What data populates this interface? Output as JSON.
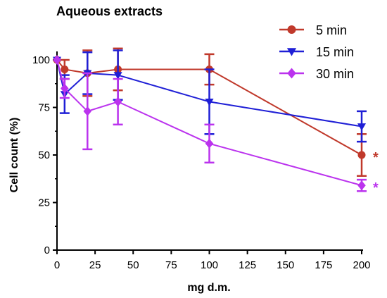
{
  "chart_data": {
    "type": "line",
    "title": "Aqueous extracts",
    "xlabel": "mg d.m.",
    "ylabel": "Cell count (%)",
    "xlim": [
      0,
      200
    ],
    "ylim": [
      0,
      100
    ],
    "x_ticks": [
      0,
      25,
      50,
      75,
      100,
      125,
      150,
      175,
      200
    ],
    "x_tick_labels": [
      "0",
      "25",
      "50",
      "75",
      "100",
      "125",
      "150",
      "175",
      "200"
    ],
    "y_ticks": [
      0,
      25,
      50,
      75,
      100
    ],
    "y_tick_labels": [
      "0",
      "25",
      "50",
      "75",
      "100"
    ],
    "grid": false,
    "legend_position": "top-right",
    "series": [
      {
        "name": "5 min",
        "color": "#c0392b",
        "marker": "circle",
        "points": [
          {
            "x": 0,
            "y": 100,
            "err": 0
          },
          {
            "x": 5,
            "y": 95,
            "err": 5
          },
          {
            "x": 20,
            "y": 93,
            "err": 12
          },
          {
            "x": 40,
            "y": 95,
            "err": 11
          },
          {
            "x": 100,
            "y": 95,
            "err": 8
          },
          {
            "x": 200,
            "y": 50,
            "err": 11
          }
        ],
        "annotation": {
          "x": 200,
          "y": 50,
          "text": "*"
        }
      },
      {
        "name": "15 min",
        "color": "#1f1fd6",
        "marker": "triangle-down",
        "points": [
          {
            "x": 0,
            "y": 100,
            "err": 0
          },
          {
            "x": 5,
            "y": 82,
            "err": 10
          },
          {
            "x": 20,
            "y": 93,
            "err": 11
          },
          {
            "x": 40,
            "y": 92,
            "err": 13
          },
          {
            "x": 100,
            "y": 78,
            "err": 17
          },
          {
            "x": 200,
            "y": 65,
            "err": 8
          }
        ]
      },
      {
        "name": "30 min",
        "color": "#bb33ee",
        "marker": "diamond",
        "points": [
          {
            "x": 0,
            "y": 100,
            "err": 0
          },
          {
            "x": 5,
            "y": 85,
            "err": 5
          },
          {
            "x": 20,
            "y": 73,
            "err": 20
          },
          {
            "x": 40,
            "y": 78,
            "err": 12
          },
          {
            "x": 100,
            "y": 56,
            "err": 10
          },
          {
            "x": 200,
            "y": 34,
            "err": 3
          }
        ],
        "annotation": {
          "x": 200,
          "y": 34,
          "text": "*"
        }
      }
    ]
  }
}
